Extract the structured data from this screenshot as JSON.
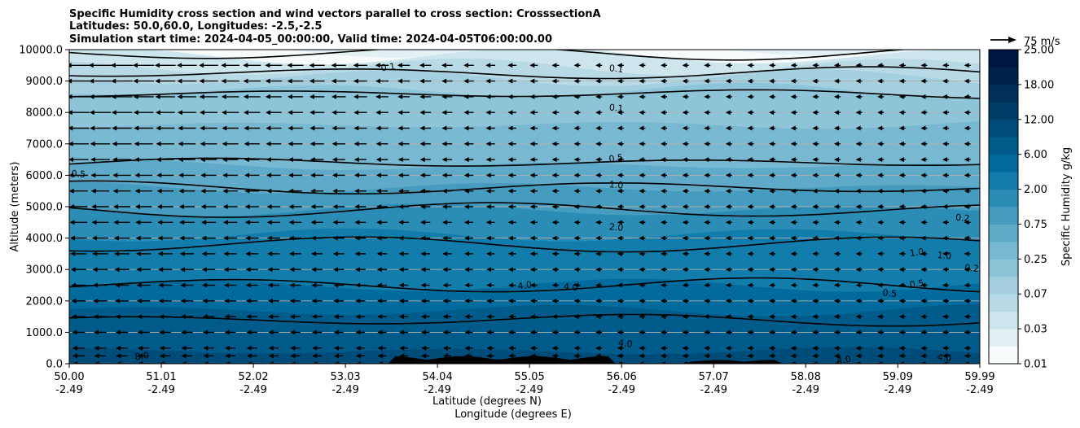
{
  "chart_data": {
    "type": "contour",
    "title_lines": [
      "Specific Humidity cross section and wind vectors parallel to cross section: CrosssectionA",
      "Latitudes: 50.0,60.0, Longitudes: -2.5,-2.5",
      "Simulation start time: 2024-04-05_00:00:00, Valid time: 2024-04-05T06:00:00.00"
    ],
    "xlabel": "Latitude (degrees N)",
    "xlabel2": "Longitude (degrees E)",
    "ylabel": "Altitude (meters)",
    "xlim": [
      50.0,
      59.99
    ],
    "ylim": [
      0,
      10000
    ],
    "x_ticks": [
      {
        "lat": "50.00",
        "lon": "-2.49",
        "value": 50.0
      },
      {
        "lat": "51.01",
        "lon": "-2.49",
        "value": 51.01
      },
      {
        "lat": "52.02",
        "lon": "-2.49",
        "value": 52.02
      },
      {
        "lat": "53.03",
        "lon": "-2.49",
        "value": 53.03
      },
      {
        "lat": "54.04",
        "lon": "-2.49",
        "value": 54.04
      },
      {
        "lat": "55.05",
        "lon": "-2.49",
        "value": 55.05
      },
      {
        "lat": "56.06",
        "lon": "-2.49",
        "value": 56.06
      },
      {
        "lat": "57.07",
        "lon": "-2.49",
        "value": 57.07
      },
      {
        "lat": "58.08",
        "lon": "-2.49",
        "value": 58.08
      },
      {
        "lat": "59.09",
        "lon": "-2.49",
        "value": 59.09
      },
      {
        "lat": "59.99",
        "lon": "-2.49",
        "value": 59.99
      }
    ],
    "y_ticks": [
      {
        "label": "0.0",
        "value": 0
      },
      {
        "label": "1000.0",
        "value": 1000
      },
      {
        "label": "2000.0",
        "value": 2000
      },
      {
        "label": "3000.0",
        "value": 3000
      },
      {
        "label": "4000.0",
        "value": 4000
      },
      {
        "label": "5000.0",
        "value": 5000
      },
      {
        "label": "6000.0",
        "value": 6000
      },
      {
        "label": "7000.0",
        "value": 7000
      },
      {
        "label": "8000.0",
        "value": 8000
      },
      {
        "label": "9000.0",
        "value": 9000
      },
      {
        "label": "10000.0",
        "value": 10000
      }
    ],
    "grid": "horizontal",
    "colorbar": {
      "label": "Specific Humidity g/kg",
      "tick_labels": [
        "0.01",
        "0.03",
        "0.07",
        "0.25",
        "0.75",
        "2.00",
        "6.00",
        "12.00",
        "18.00",
        "25.00"
      ],
      "colors": [
        "#f7fbfc",
        "#e3f0f4",
        "#cde5ed",
        "#b8dae6",
        "#a3cfdf",
        "#8ec4d8",
        "#78b8d1",
        "#5faac8",
        "#469cbf",
        "#2b8db6",
        "#127dab",
        "#006b9c",
        "#005b8a",
        "#004c78",
        "#003d69",
        "#002f5a",
        "#00224d",
        "#001642"
      ]
    },
    "quiver_key": {
      "label": "75 m/s",
      "value": 75
    },
    "contour_levels": [
      {
        "label": "0.1",
        "value": 0.1,
        "ys": [
          9900,
          9250,
          8600
        ]
      },
      {
        "label": "0.5",
        "value": 0.5,
        "ys": [
          6400
        ]
      },
      {
        "label": "1.0",
        "value": 1.0,
        "ys": [
          5600,
          4900
        ]
      },
      {
        "label": "2.0",
        "value": 2.0,
        "ys": [
          3800
        ]
      },
      {
        "label": "4.0",
        "value": 4.0,
        "ys": [
          2500,
          1400
        ]
      }
    ],
    "annotations": [
      "0.1",
      "0.1",
      "0.1",
      "0.5",
      "1.0",
      "2.0",
      "4.0",
      "4.0",
      "4.0",
      "4.0",
      "4.0",
      "0.5",
      "1.0",
      "1.0",
      "0.5",
      "0.5",
      "0.2",
      "0.2",
      "8.0"
    ],
    "wind_levels_m": [
      0,
      250,
      500,
      1000,
      1500,
      2000,
      2500,
      3000,
      3500,
      4000,
      4500,
      5000,
      5500,
      6000,
      6500,
      7000,
      7500,
      8000,
      8500,
      9000,
      9500
    ],
    "wind_max_speed_ms": 20
  }
}
